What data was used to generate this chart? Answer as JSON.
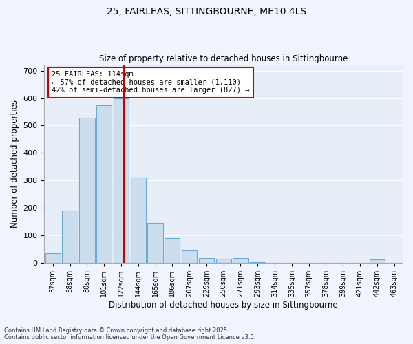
{
  "title1": "25, FAIRLEAS, SITTINGBOURNE, ME10 4LS",
  "title2": "Size of property relative to detached houses in Sittingbourne",
  "xlabel": "Distribution of detached houses by size in Sittingbourne",
  "ylabel": "Number of detached properties",
  "categories": [
    "37sqm",
    "58sqm",
    "80sqm",
    "101sqm",
    "122sqm",
    "144sqm",
    "165sqm",
    "186sqm",
    "207sqm",
    "229sqm",
    "250sqm",
    "271sqm",
    "293sqm",
    "314sqm",
    "335sqm",
    "357sqm",
    "378sqm",
    "399sqm",
    "421sqm",
    "442sqm",
    "463sqm"
  ],
  "values": [
    35,
    190,
    530,
    575,
    600,
    310,
    145,
    90,
    45,
    18,
    15,
    18,
    3,
    0,
    0,
    0,
    0,
    0,
    0,
    14,
    0
  ],
  "bar_color": "#ccdded",
  "bar_edge_color": "#6aaad4",
  "vline_x": 4.15,
  "vline_color": "#cc0000",
  "annotation_text": "25 FAIRLEAS: 114sqm\n← 57% of detached houses are smaller (1,110)\n42% of semi-detached houses are larger (827) →",
  "annotation_box_color": "#ffffff",
  "annotation_box_edge": "#cc0000",
  "ylim": [
    0,
    720
  ],
  "yticks": [
    0,
    100,
    200,
    300,
    400,
    500,
    600,
    700
  ],
  "footnote": "Contains HM Land Registry data © Crown copyright and database right 2025.\nContains public sector information licensed under the Open Government Licence v3.0.",
  "background_color": "#f0f4ff",
  "plot_bg_color": "#e8eef8",
  "grid_color": "#ffffff"
}
